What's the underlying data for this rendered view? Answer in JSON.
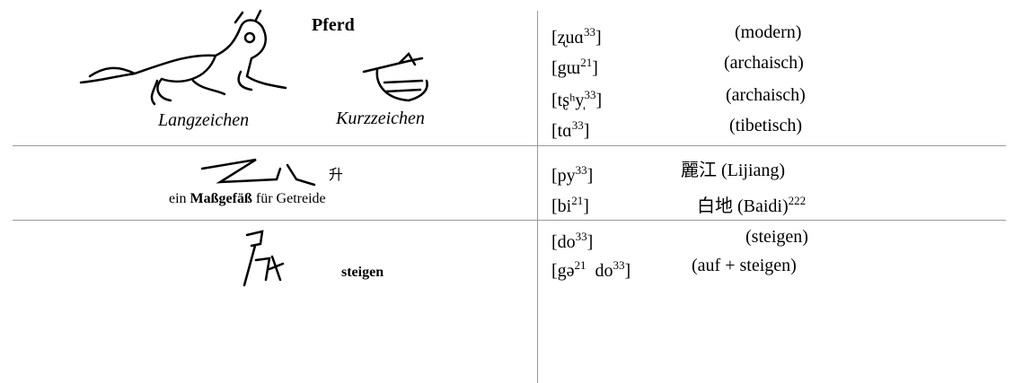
{
  "rows": [
    {
      "left": {
        "title": "Pferd",
        "labels": [
          "Langzeichen",
          "Kurzzeichen"
        ]
      },
      "readings": [
        {
          "parts": [
            [
              "[ʐuɑ",
              "33"
            ]
          ],
          "close": "]",
          "gloss": "(modern)"
        },
        {
          "parts": [
            [
              "[gɯ",
              "21"
            ]
          ],
          "close": "]",
          "gloss": "(archaisch)"
        },
        {
          "parts": [
            [
              "[tʂʰy̩",
              "33"
            ]
          ],
          "close": "]",
          "gloss": "(archaisch)"
        },
        {
          "parts": [
            [
              "[tɑ",
              "33"
            ]
          ],
          "close": "]",
          "gloss": "(tibetisch)"
        }
      ]
    },
    {
      "left": {
        "char": "升",
        "text": [
          "ein ",
          "Maßgefäß",
          " für Getreide"
        ]
      },
      "readings": [
        {
          "parts": [
            [
              "[py",
              "33"
            ]
          ],
          "close": "]",
          "gloss": "麗江 (Lijiang)"
        },
        {
          "parts": [
            [
              "[bi",
              "21"
            ]
          ],
          "close": "]",
          "gloss": "白地 (Baidi)",
          "note": "222"
        }
      ]
    },
    {
      "left": {
        "title": "steigen"
      },
      "readings": [
        {
          "parts": [
            [
              "[do",
              "33"
            ]
          ],
          "close": "]",
          "gloss": "(steigen)"
        },
        {
          "parts": [
            [
              "[gə",
              "21"
            ],
            [
              "  do",
              "33"
            ]
          ],
          "close": "]",
          "gloss": "(auf + steigen)"
        }
      ]
    }
  ]
}
